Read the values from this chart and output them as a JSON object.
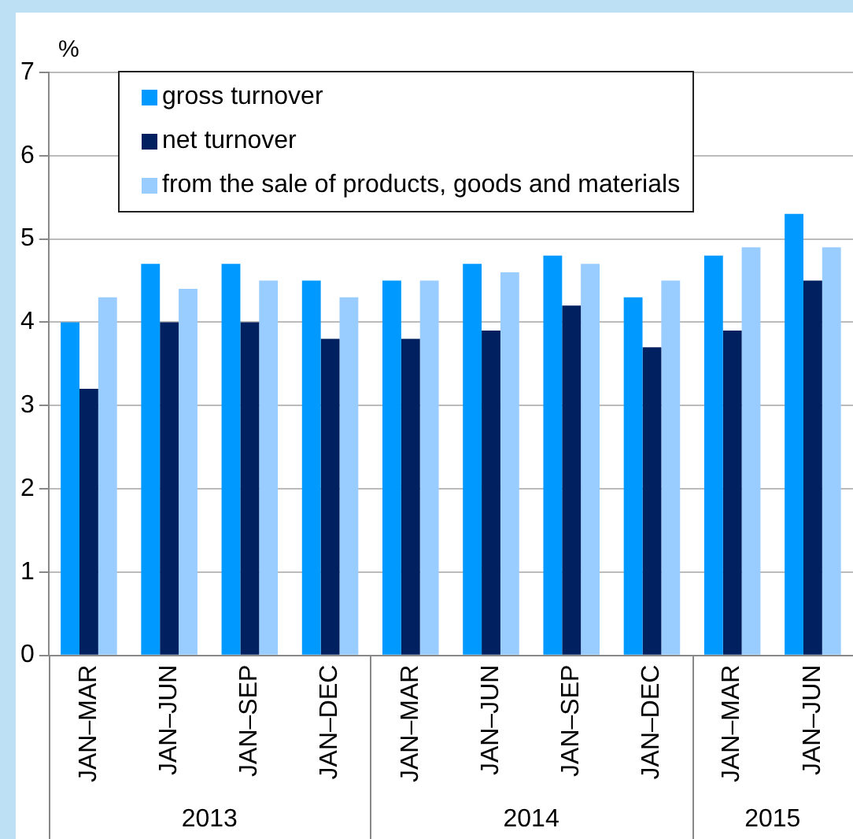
{
  "chart_data": {
    "type": "bar",
    "ylabel": "%",
    "categories": [
      "JAN–MAR",
      "JAN–JUN",
      "JAN–SEP",
      "JAN–DEC",
      "JAN–MAR",
      "JAN–JUN",
      "JAN–SEP",
      "JAN–DEC",
      "JAN–MAR",
      "JAN–JUN"
    ],
    "series": [
      {
        "name": "gross turnover",
        "color": "#0099ff",
        "values": [
          4.0,
          4.7,
          4.7,
          4.5,
          4.5,
          4.7,
          4.8,
          4.3,
          4.8,
          5.3
        ]
      },
      {
        "name": "net turnover",
        "color": "#00205f",
        "values": [
          3.2,
          4.0,
          4.0,
          3.8,
          3.8,
          3.9,
          4.2,
          3.7,
          3.9,
          4.5
        ]
      },
      {
        "name": "from the sale of products, goods and materials",
        "color": "#99ccff",
        "values": [
          4.3,
          4.4,
          4.5,
          4.3,
          4.5,
          4.6,
          4.7,
          4.5,
          4.9,
          4.9
        ]
      }
    ],
    "ylim": [
      0,
      7
    ],
    "yticks": [
      0,
      1,
      2,
      3,
      4,
      5,
      6,
      7
    ],
    "grid": "y",
    "legend": "top",
    "annotations": [
      "2013",
      "2014",
      "2015"
    ]
  }
}
